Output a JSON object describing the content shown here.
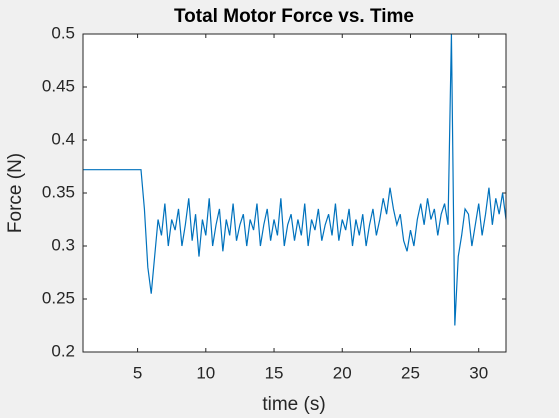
{
  "chart_data": {
    "type": "line",
    "title": "Total Motor Force vs. Time",
    "xlabel": "time (s)",
    "ylabel": "Force (N)",
    "xlim": [
      1,
      32
    ],
    "ylim": [
      0.2,
      0.5
    ],
    "xticks": [
      5,
      10,
      15,
      20,
      25,
      30
    ],
    "yticks": [
      0.2,
      0.25,
      0.3,
      0.35,
      0.4,
      0.45,
      0.5
    ],
    "x": [
      1,
      5.25,
      5.5,
      5.75,
      6,
      6.25,
      6.5,
      6.75,
      7,
      7.25,
      7.5,
      7.75,
      8,
      8.25,
      8.5,
      8.75,
      9,
      9.25,
      9.5,
      9.75,
      10,
      10.25,
      10.5,
      10.75,
      11,
      11.25,
      11.5,
      11.75,
      12,
      12.25,
      12.5,
      12.75,
      13,
      13.25,
      13.5,
      13.75,
      14,
      14.25,
      14.5,
      14.75,
      15,
      15.25,
      15.5,
      15.75,
      16,
      16.25,
      16.5,
      16.75,
      17,
      17.25,
      17.5,
      17.75,
      18,
      18.25,
      18.5,
      18.75,
      19,
      19.25,
      19.5,
      19.75,
      20,
      20.25,
      20.5,
      20.75,
      21,
      21.25,
      21.5,
      21.75,
      22,
      22.25,
      22.5,
      22.75,
      23,
      23.25,
      23.5,
      23.75,
      24,
      24.25,
      24.5,
      24.75,
      25,
      25.25,
      25.5,
      25.75,
      26,
      26.25,
      26.5,
      26.75,
      27,
      27.25,
      27.5,
      27.75,
      28,
      28.25,
      28.5,
      28.75,
      29,
      29.25,
      29.5,
      29.75,
      30,
      30.25,
      30.5,
      30.75,
      31,
      31.25,
      31.5,
      31.75,
      32
    ],
    "series": [
      {
        "color": "#0072bd",
        "values": [
          0.372,
          0.372,
          0.335,
          0.28,
          0.255,
          0.29,
          0.325,
          0.31,
          0.34,
          0.3,
          0.325,
          0.315,
          0.335,
          0.3,
          0.32,
          0.345,
          0.305,
          0.33,
          0.29,
          0.325,
          0.31,
          0.345,
          0.3,
          0.32,
          0.335,
          0.295,
          0.325,
          0.31,
          0.34,
          0.305,
          0.32,
          0.33,
          0.3,
          0.325,
          0.315,
          0.34,
          0.3,
          0.32,
          0.335,
          0.305,
          0.325,
          0.31,
          0.345,
          0.3,
          0.32,
          0.33,
          0.305,
          0.325,
          0.31,
          0.34,
          0.3,
          0.325,
          0.315,
          0.335,
          0.305,
          0.32,
          0.33,
          0.31,
          0.34,
          0.305,
          0.325,
          0.315,
          0.335,
          0.3,
          0.325,
          0.31,
          0.33,
          0.3,
          0.32,
          0.335,
          0.31,
          0.325,
          0.345,
          0.33,
          0.355,
          0.335,
          0.32,
          0.33,
          0.305,
          0.295,
          0.315,
          0.3,
          0.325,
          0.34,
          0.32,
          0.345,
          0.325,
          0.335,
          0.31,
          0.33,
          0.34,
          0.32,
          0.5,
          0.225,
          0.29,
          0.31,
          0.335,
          0.33,
          0.3,
          0.32,
          0.34,
          0.31,
          0.33,
          0.355,
          0.32,
          0.345,
          0.33,
          0.35,
          0.325
        ]
      }
    ]
  }
}
